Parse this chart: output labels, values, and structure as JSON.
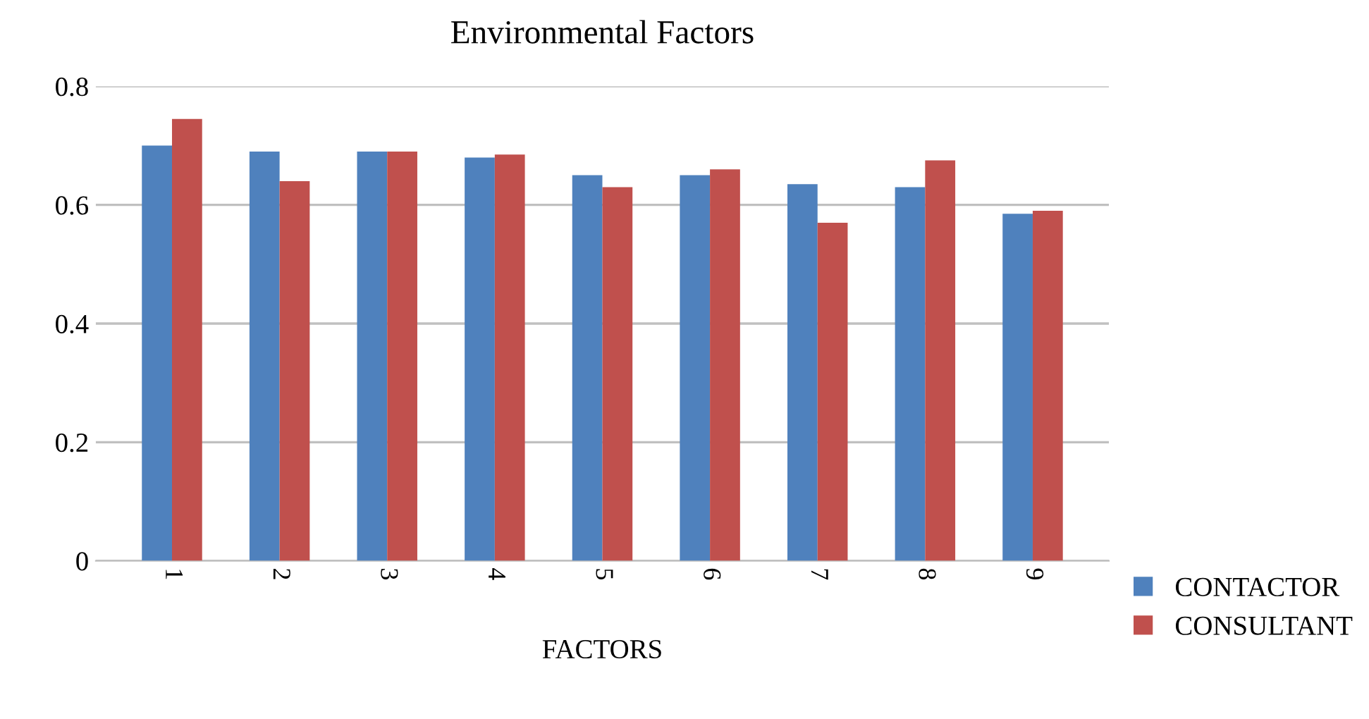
{
  "chart_data": {
    "type": "bar",
    "title": "Environmental Factors",
    "xlabel": "FACTORS",
    "categories": [
      "1",
      "2",
      "3",
      "4",
      "5",
      "6",
      "7",
      "8",
      "9"
    ],
    "series": [
      {
        "name": "CONTACTOR",
        "color": "#4f81bd",
        "values": [
          0.7,
          0.69,
          0.69,
          0.68,
          0.65,
          0.65,
          0.635,
          0.63,
          0.585
        ]
      },
      {
        "name": "CONSULTANT",
        "color": "#c0504d",
        "values": [
          0.745,
          0.64,
          0.69,
          0.685,
          0.63,
          0.66,
          0.57,
          0.675,
          0.59
        ]
      }
    ],
    "ylim": [
      0,
      0.8
    ],
    "yticks": [
      0,
      0.2,
      0.4,
      0.6,
      0.8
    ],
    "grid": "y",
    "legend": "right"
  }
}
